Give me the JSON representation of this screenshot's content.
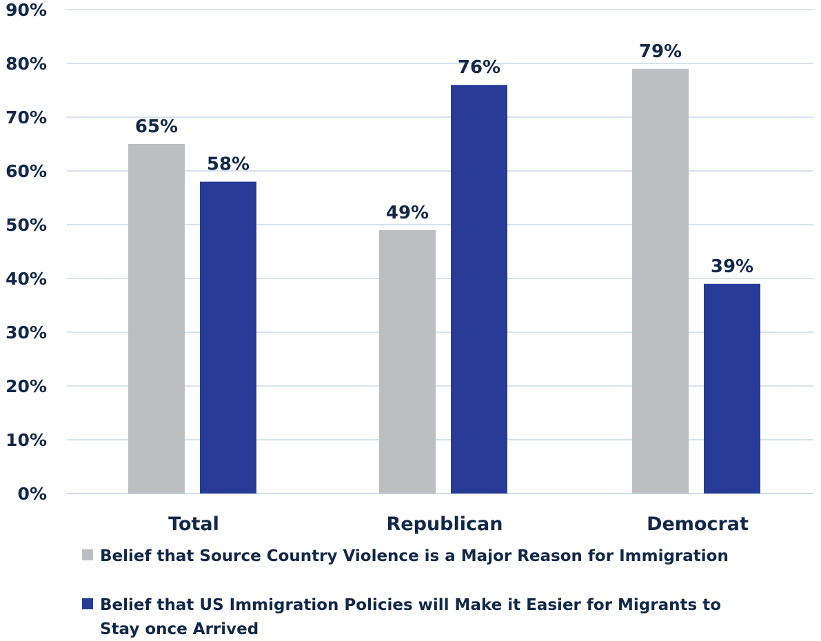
{
  "chart_data": {
    "type": "bar",
    "categories": [
      "Total",
      "Republican",
      "Democrat"
    ],
    "series": [
      {
        "name": "Belief that Source Country Violence is a Major Reason for Immigration",
        "values": [
          65,
          49,
          79
        ],
        "labels": [
          "65%",
          "49%",
          "79%"
        ],
        "color": "#bdbec2"
      },
      {
        "name": "Belief that US Immigration Policies will Make it Easier for Migrants to Stay once Arrived",
        "name_lines": [
          "Belief that US Immigration Policies will Make it Easier for Migrants to",
          "Stay once Arrived"
        ],
        "values": [
          58,
          76,
          39
        ],
        "labels": [
          "58%",
          "76%",
          "39%"
        ],
        "color": "#283b96"
      }
    ],
    "ylim": [
      0,
      90
    ],
    "yticks": [
      "0%",
      "10%",
      "20%",
      "30%",
      "40%",
      "50%",
      "60%",
      "70%",
      "80%",
      "90%"
    ],
    "grid": true,
    "grid_color": "#c9dbe9",
    "legend_position": "bottom-left",
    "xlabel": "",
    "ylabel": ""
  }
}
